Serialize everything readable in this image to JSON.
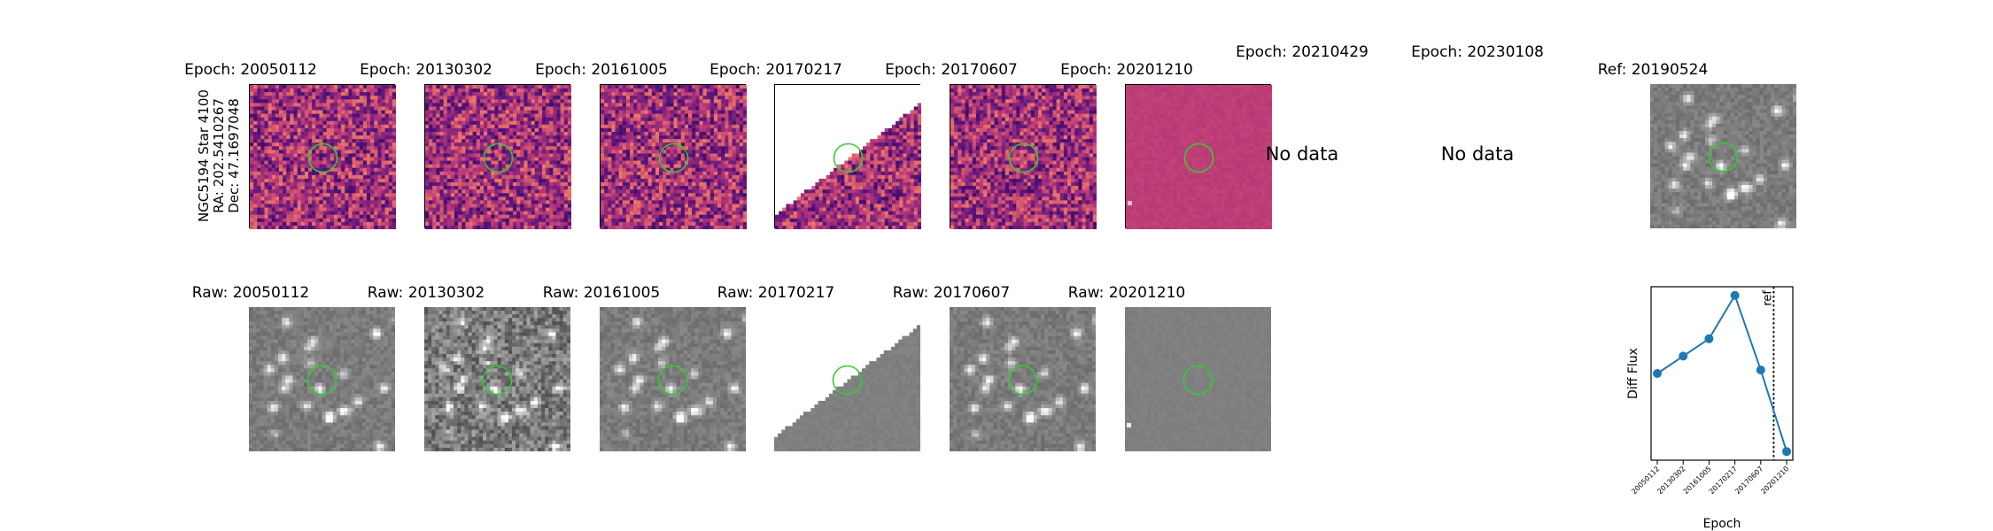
{
  "side_label": {
    "line1": "NGC5194 Star 4100",
    "line2": "RA: 202.5410267",
    "line3": "Dec: 47.1697048"
  },
  "top_row": [
    {
      "title": "Epoch: 20050112",
      "kind": "diff"
    },
    {
      "title": "Epoch: 20130302",
      "kind": "diff"
    },
    {
      "title": "Epoch: 20161005",
      "kind": "diff"
    },
    {
      "title": "Epoch: 20170217",
      "kind": "diff-partial"
    },
    {
      "title": "Epoch: 20170607",
      "kind": "diff"
    },
    {
      "title": "Epoch: 20201210",
      "kind": "diff-flat"
    },
    {
      "title": "Epoch: 20210429",
      "kind": "nodata",
      "text": "No data"
    },
    {
      "title": "Epoch: 20230108",
      "kind": "nodata",
      "text": "No data"
    },
    {
      "title": "Ref: 20190524",
      "kind": "ref"
    }
  ],
  "bottom_row": [
    {
      "title": "Raw: 20050112",
      "kind": "raw"
    },
    {
      "title": "Raw: 20130302",
      "kind": "raw-noisy"
    },
    {
      "title": "Raw: 20161005",
      "kind": "raw"
    },
    {
      "title": "Raw: 20170217",
      "kind": "raw-partial"
    },
    {
      "title": "Raw: 20170607",
      "kind": "raw"
    },
    {
      "title": "Raw: 20201210",
      "kind": "raw-flat"
    }
  ],
  "chart_data": {
    "type": "line",
    "xlabel": "Epoch",
    "ylabel": "Diff Flux",
    "categories": [
      "20050112",
      "20130302",
      "20161005",
      "20170217",
      "20170607",
      "20201210"
    ],
    "values": [
      0.55,
      0.65,
      0.75,
      1.0,
      0.57,
      0.1
    ],
    "ref_label": "ref",
    "ref_position_between": [
      "20170607",
      "20201210"
    ],
    "series_color": "#1f77b4",
    "circle_color": "#33cc33"
  }
}
